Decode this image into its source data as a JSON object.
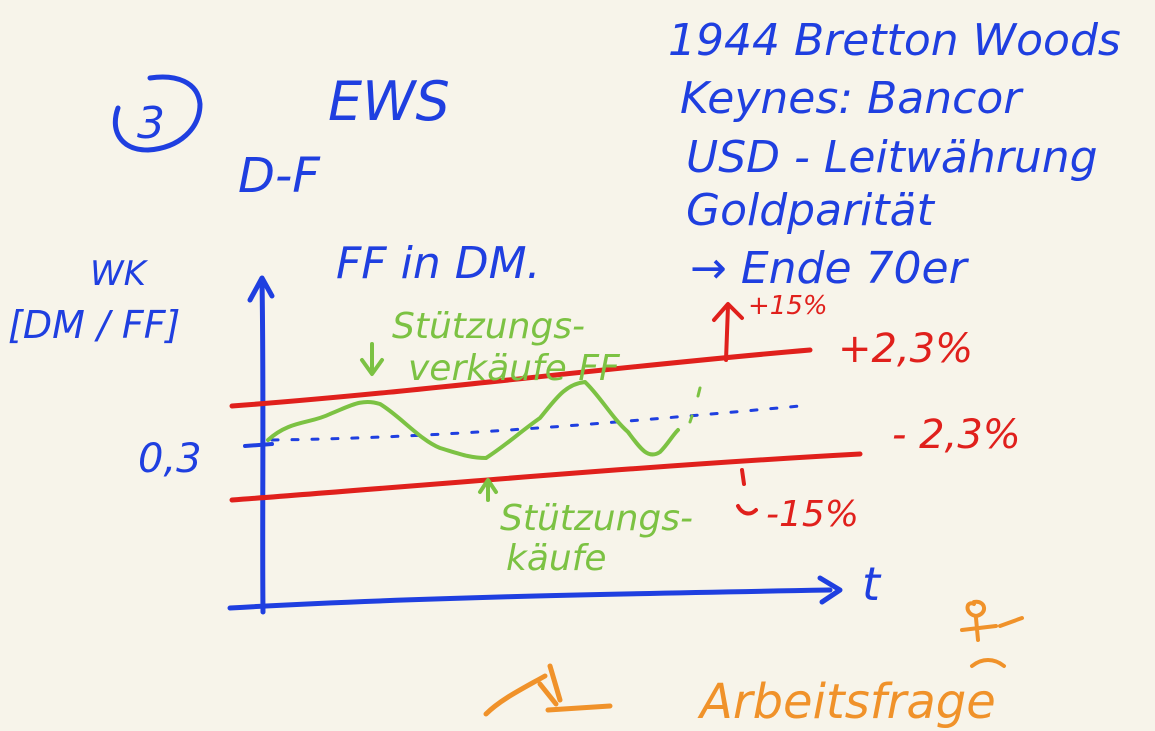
{
  "texts": {
    "section_number": "3",
    "title": "EWS",
    "pair": "D-F",
    "ff_in_dm": "FF in DM.",
    "yaxis_label_line1": "WK",
    "yaxis_label_line2": "[DM / FF]",
    "central_rate": "0,3",
    "xaxis_label": "t",
    "plus_band": "+2,3%",
    "minus_band": "- 2,3%",
    "plus_wide": "+15%",
    "minus_wide": "-15%",
    "sell_support_line1": "Stützungs-",
    "sell_support_line2": "verkäufe FF",
    "buy_support_line1": "Stützungs-",
    "buy_support_line2": "käufe",
    "notes_line1": "1944 Bretton Woods",
    "notes_line2": "Keynes: Bancor",
    "notes_line3": "USD - Leitwährung",
    "notes_line4": "Goldparität",
    "notes_line5": "→ Ende 70er",
    "bottom_word": "Arbeitsfrage"
  },
  "colors": {
    "ink_blue": "#1f3fe0",
    "ink_red": "#e0201c",
    "ink_green": "#7cc243",
    "ink_orange": "#f0922a",
    "paper": "#f7f4ea"
  }
}
